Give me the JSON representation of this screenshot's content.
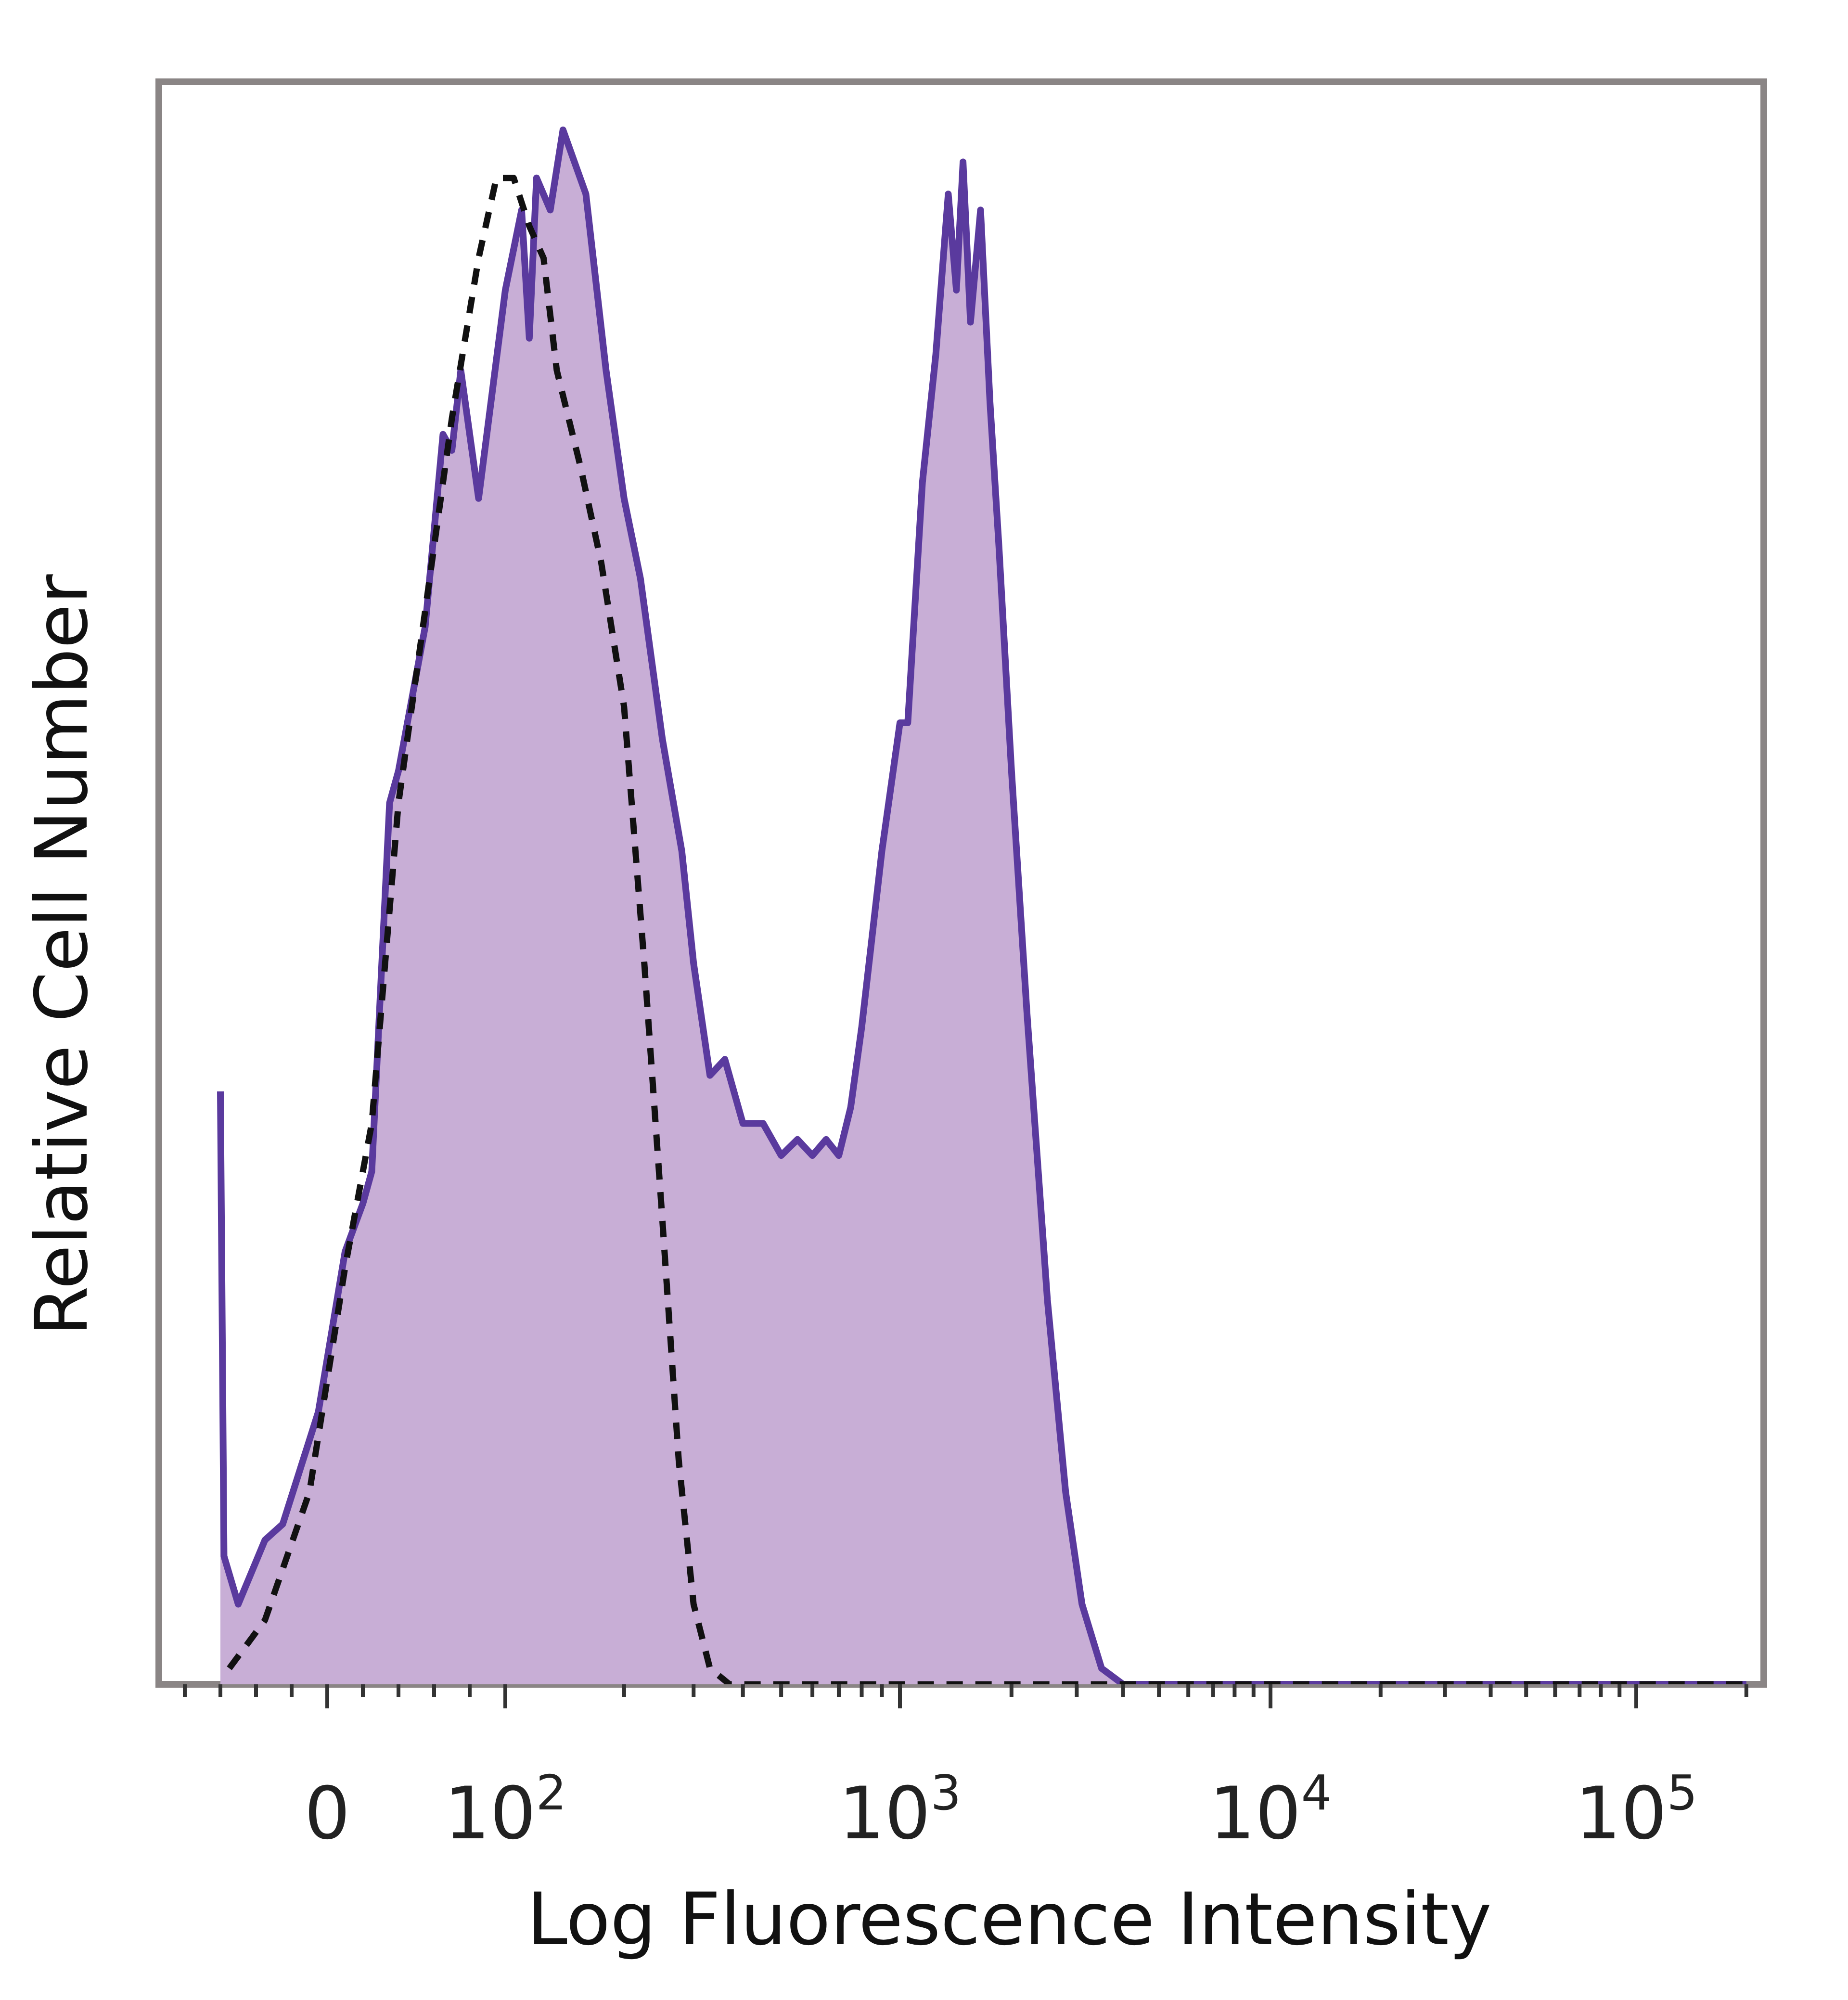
{
  "chart_data": {
    "type": "area",
    "xlabel": "Log Fluorescence Intensity",
    "ylabel": "Relative Cell Number",
    "x_scale": "biexponential",
    "x_ticks": [
      {
        "base": "0",
        "exp": "",
        "value": 0
      },
      {
        "base": "10",
        "exp": "2",
        "value": 100
      },
      {
        "base": "10",
        "exp": "3",
        "value": 1000
      },
      {
        "base": "10",
        "exp": "4",
        "value": 10000
      },
      {
        "base": "10",
        "exp": "5",
        "value": 100000
      }
    ],
    "ylim": [
      0,
      100
    ],
    "grid": false,
    "series": [
      {
        "style": "filled",
        "fill_color": "#c8aed6",
        "line_color": "#5a3a9e",
        "points": [
          [
            -60,
            37
          ],
          [
            -58,
            8
          ],
          [
            -50,
            5
          ],
          [
            -35,
            9
          ],
          [
            -25,
            10
          ],
          [
            -5,
            17
          ],
          [
            10,
            27
          ],
          [
            20,
            30
          ],
          [
            25,
            32
          ],
          [
            35,
            55
          ],
          [
            40,
            57
          ],
          [
            55,
            66
          ],
          [
            65,
            78
          ],
          [
            70,
            77
          ],
          [
            75,
            82
          ],
          [
            85,
            74
          ],
          [
            100,
            87
          ],
          [
            110,
            92
          ],
          [
            115,
            84
          ],
          [
            120,
            94
          ],
          [
            130,
            92
          ],
          [
            140,
            97
          ],
          [
            160,
            93
          ],
          [
            180,
            82
          ],
          [
            200,
            74
          ],
          [
            220,
            69
          ],
          [
            250,
            59
          ],
          [
            280,
            52
          ],
          [
            300,
            45
          ],
          [
            330,
            38
          ],
          [
            360,
            39
          ],
          [
            400,
            35
          ],
          [
            450,
            35
          ],
          [
            500,
            33
          ],
          [
            550,
            34
          ],
          [
            600,
            33
          ],
          [
            650,
            34
          ],
          [
            700,
            33
          ],
          [
            750,
            36
          ],
          [
            800,
            41
          ],
          [
            900,
            52
          ],
          [
            1000,
            60
          ],
          [
            1050,
            60
          ],
          [
            1150,
            75
          ],
          [
            1250,
            83
          ],
          [
            1350,
            93
          ],
          [
            1420,
            87
          ],
          [
            1480,
            95
          ],
          [
            1550,
            85
          ],
          [
            1650,
            92
          ],
          [
            1750,
            80
          ],
          [
            1850,
            71
          ],
          [
            2000,
            57
          ],
          [
            2200,
            42
          ],
          [
            2500,
            24
          ],
          [
            2800,
            12
          ],
          [
            3100,
            5
          ],
          [
            3500,
            1
          ],
          [
            4000,
            0
          ],
          [
            10000,
            0
          ],
          [
            200000,
            0
          ]
        ]
      },
      {
        "style": "dashed",
        "line_color": "#111111",
        "points": [
          [
            -55,
            1
          ],
          [
            -35,
            4
          ],
          [
            -10,
            12
          ],
          [
            10,
            26
          ],
          [
            25,
            35
          ],
          [
            40,
            55
          ],
          [
            55,
            67
          ],
          [
            70,
            79
          ],
          [
            85,
            89
          ],
          [
            95,
            94
          ],
          [
            105,
            94
          ],
          [
            115,
            91
          ],
          [
            125,
            89
          ],
          [
            135,
            82
          ],
          [
            155,
            76
          ],
          [
            175,
            70
          ],
          [
            200,
            61
          ],
          [
            225,
            45
          ],
          [
            250,
            29
          ],
          [
            275,
            14
          ],
          [
            300,
            5
          ],
          [
            330,
            1
          ],
          [
            370,
            0
          ],
          [
            10000,
            0
          ],
          [
            200000,
            0
          ]
        ]
      }
    ]
  }
}
